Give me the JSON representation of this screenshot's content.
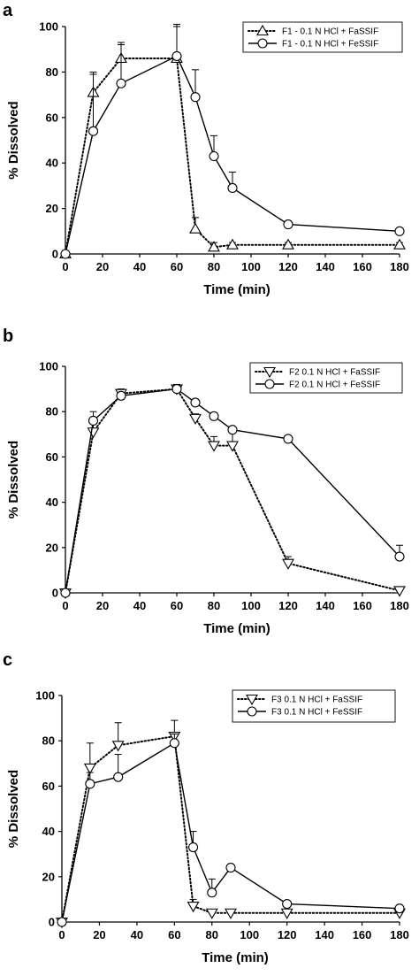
{
  "chart_data": [
    {
      "type": "line",
      "panel_label": "a",
      "xlabel": "Time (min)",
      "ylabel": "% Dissolved",
      "xlim": [
        0,
        180
      ],
      "ylim": [
        0,
        100
      ],
      "xticks": [
        0,
        20,
        40,
        60,
        80,
        100,
        120,
        140,
        160,
        180
      ],
      "yticks": [
        0,
        20,
        40,
        60,
        80,
        100
      ],
      "legend_position": "top-right",
      "series": [
        {
          "name": "F1 - 0.1 N HCl + FaSSIF",
          "marker": "triangle-up",
          "line_style": "dotted",
          "x": [
            0,
            15,
            30,
            60,
            70,
            80,
            90,
            120,
            180
          ],
          "y": [
            0,
            71,
            86,
            86,
            11,
            3,
            4,
            4,
            4
          ],
          "err": [
            0,
            8,
            6,
            14,
            5,
            2,
            1,
            1,
            1
          ]
        },
        {
          "name": "F1 - 0.1 N HCl + FeSSIF",
          "marker": "circle",
          "line_style": "solid",
          "x": [
            0,
            15,
            30,
            60,
            70,
            80,
            90,
            120,
            180
          ],
          "y": [
            0,
            54,
            75,
            87,
            69,
            43,
            29,
            13,
            10
          ],
          "err": [
            0,
            26,
            18,
            14,
            12,
            9,
            7,
            1,
            1
          ]
        }
      ]
    },
    {
      "type": "line",
      "panel_label": "b",
      "xlabel": "Time (min)",
      "ylabel": "% Dissolved",
      "xlim": [
        0,
        180
      ],
      "ylim": [
        0,
        100
      ],
      "xticks": [
        0,
        20,
        40,
        60,
        80,
        100,
        120,
        140,
        160,
        180
      ],
      "yticks": [
        0,
        20,
        40,
        60,
        80,
        100
      ],
      "legend_position": "top-right",
      "series": [
        {
          "name": "F2 0.1 N HCl + FaSSIF",
          "marker": "triangle-down",
          "line_style": "dotted",
          "x": [
            0,
            15,
            30,
            60,
            70,
            80,
            90,
            120,
            180
          ],
          "y": [
            0,
            71,
            88,
            90,
            77,
            65,
            65,
            13,
            1
          ],
          "err": [
            0,
            5,
            2,
            2,
            2,
            4,
            7,
            3,
            0
          ]
        },
        {
          "name": "F2 0.1 N HCl + FeSSIF",
          "marker": "circle",
          "line_style": "solid",
          "x": [
            0,
            15,
            30,
            60,
            70,
            80,
            90,
            120,
            180
          ],
          "y": [
            0,
            76,
            87,
            90,
            84,
            78,
            72,
            68,
            16
          ],
          "err": [
            0,
            4,
            1,
            2,
            1,
            1,
            1,
            1,
            5
          ]
        }
      ]
    },
    {
      "type": "line",
      "panel_label": "c",
      "xlabel": "Time (min)",
      "ylabel": "% Dissolved",
      "xlim": [
        0,
        180
      ],
      "ylim": [
        0,
        100
      ],
      "xticks": [
        0,
        20,
        40,
        60,
        80,
        100,
        120,
        140,
        160,
        180
      ],
      "yticks": [
        0,
        20,
        40,
        60,
        80,
        100
      ],
      "legend_position": "top-right",
      "series": [
        {
          "name": "F3 0.1 N HCl + FaSSIF",
          "marker": "triangle-down",
          "line_style": "dotted",
          "x": [
            0,
            15,
            30,
            60,
            70,
            80,
            90,
            120,
            180
          ],
          "y": [
            0,
            68,
            78,
            82,
            7,
            4,
            4,
            4,
            4
          ],
          "err": [
            0,
            11,
            10,
            7,
            3,
            1,
            1,
            1,
            1
          ]
        },
        {
          "name": "F3 0.1 N HCl + FeSSIF",
          "marker": "circle",
          "line_style": "solid",
          "x": [
            0,
            15,
            30,
            60,
            70,
            80,
            90,
            120,
            180
          ],
          "y": [
            0,
            61,
            64,
            79,
            33,
            13,
            24,
            8,
            6
          ],
          "err": [
            0,
            5,
            10,
            4,
            7,
            6,
            1,
            1,
            1
          ]
        }
      ]
    }
  ]
}
